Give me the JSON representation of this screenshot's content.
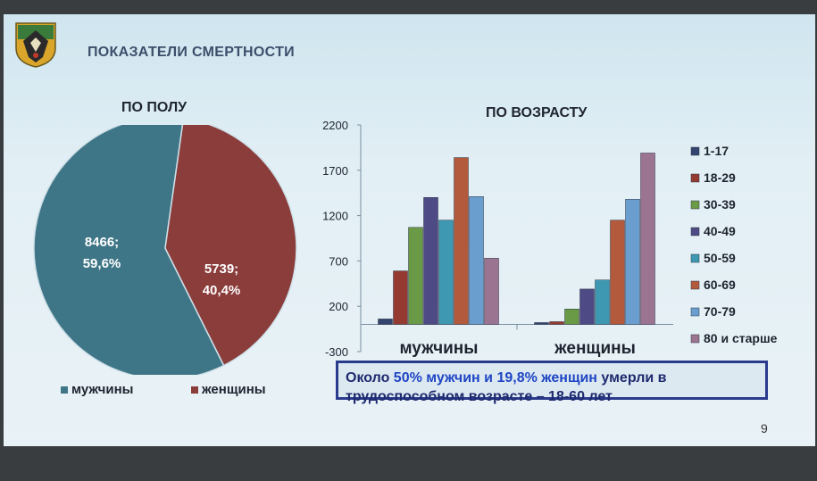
{
  "slide": {
    "title": "ПОКАЗАТЕЛИ СМЕРТНОСТИ",
    "page_number": "9",
    "callout": {
      "part1": "Около ",
      "part2": "50% мужчин и 19,8% женщин",
      "part3": " умерли в трудоспособном возрасте – 18-60 лет"
    }
  },
  "colors": {
    "male": "#3f7687",
    "female": "#8a3d3b",
    "age_groups": [
      "#33446e",
      "#943a30",
      "#6a9a45",
      "#4e4a85",
      "#3f98b2",
      "#b25a3b",
      "#6a9ecf",
      "#9b7491"
    ]
  },
  "chart_data": [
    {
      "type": "pie",
      "title": "ПО ПОЛУ",
      "slices": [
        {
          "name": "мужчины",
          "value": 8466,
          "label": "8466;",
          "percent_label": "59,6%"
        },
        {
          "name": "женщины",
          "value": 5739,
          "label": "5739;",
          "percent_label": "40,4%"
        }
      ],
      "legend_placement": "bottom"
    },
    {
      "type": "bar",
      "title": "ПО ВОЗРАСТУ",
      "categories": [
        "мужчины",
        "женщины"
      ],
      "series": [
        {
          "name": "1-17",
          "values": [
            60,
            20
          ]
        },
        {
          "name": "18-29",
          "values": [
            590,
            30
          ]
        },
        {
          "name": "30-39",
          "values": [
            1070,
            170
          ]
        },
        {
          "name": "40-49",
          "values": [
            1400,
            390
          ]
        },
        {
          "name": "50-59",
          "values": [
            1150,
            490
          ]
        },
        {
          "name": "60-69",
          "values": [
            1840,
            1150
          ]
        },
        {
          "name": "70-79",
          "values": [
            1410,
            1380
          ]
        },
        {
          "name": "80 и старше",
          "values": [
            730,
            1890
          ]
        }
      ],
      "ylim": [
        -300,
        2200
      ],
      "yticks": [
        "-300",
        "200",
        "700",
        "1200",
        "1700",
        "2200"
      ],
      "ytick_values": [
        -300,
        200,
        700,
        1200,
        1700,
        2200
      ],
      "grid": false,
      "legend_placement": "right"
    }
  ]
}
